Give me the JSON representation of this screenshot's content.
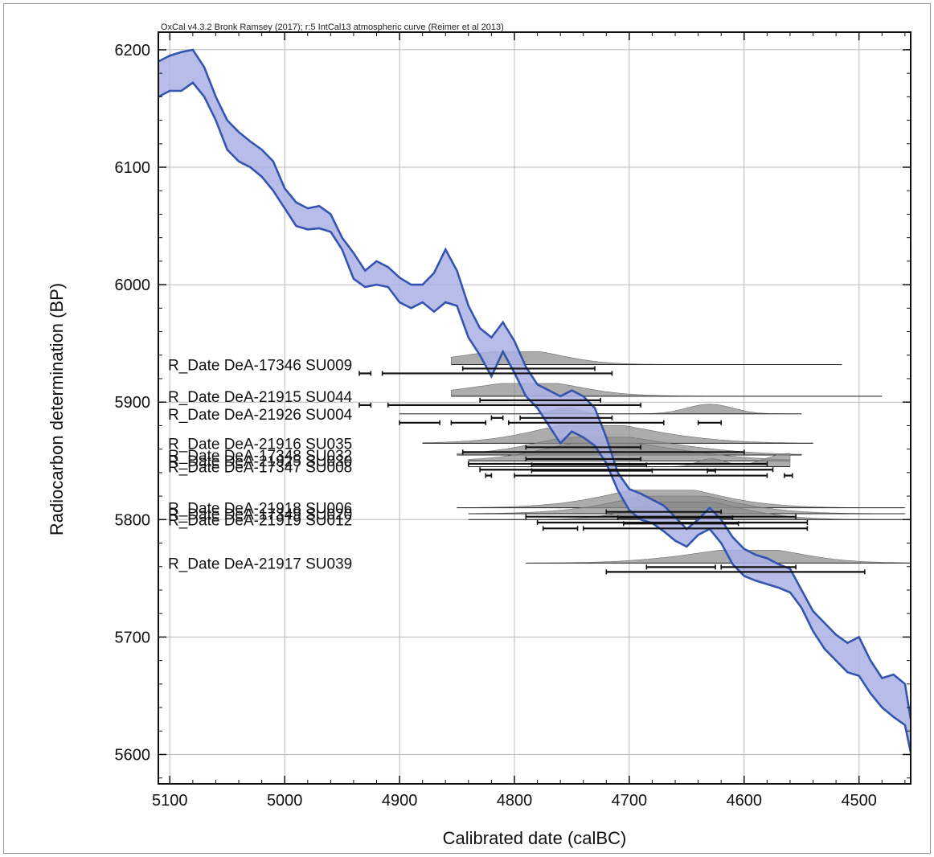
{
  "chart_data": {
    "type": "area",
    "title": "OxCal v4.3.2 Bronk Ramsey (2017); r:5 IntCal13 atmospheric curve (Reimer et al 2013)",
    "xlabel": "Calibrated date (calBC)",
    "ylabel": "Radiocarbon determination (BP)",
    "xlim": [
      5110,
      4455
    ],
    "ylim": [
      5575,
      6215
    ],
    "x_ticks": [
      5100,
      5000,
      4900,
      4800,
      4700,
      4600,
      4500
    ],
    "y_ticks": [
      5600,
      5700,
      5800,
      5900,
      6000,
      6100,
      6200
    ],
    "grid": true,
    "calibration_curve": {
      "name": "IntCal13 atmospheric curve",
      "color": "#3355b0",
      "fill": "#aab2e4",
      "x": [
        5110,
        5100,
        5090,
        5080,
        5070,
        5060,
        5050,
        5040,
        5030,
        5020,
        5010,
        5000,
        4990,
        4980,
        4970,
        4960,
        4950,
        4940,
        4930,
        4920,
        4910,
        4900,
        4890,
        4880,
        4870,
        4860,
        4850,
        4840,
        4830,
        4820,
        4810,
        4800,
        4790,
        4780,
        4770,
        4760,
        4750,
        4740,
        4730,
        4720,
        4710,
        4700,
        4690,
        4680,
        4670,
        4660,
        4650,
        4640,
        4630,
        4620,
        4610,
        4600,
        4590,
        4580,
        4570,
        4560,
        4550,
        4540,
        4530,
        4520,
        4510,
        4500,
        4490,
        4480,
        4470,
        4460,
        4455
      ],
      "upper": [
        6190,
        6195,
        6198,
        6200,
        6185,
        6160,
        6140,
        6130,
        6122,
        6115,
        6105,
        6082,
        6070,
        6065,
        6067,
        6060,
        6040,
        6027,
        6012,
        6020,
        6015,
        6006,
        6000,
        6000,
        6010,
        6030,
        6012,
        5982,
        5963,
        5955,
        5968,
        5952,
        5930,
        5915,
        5910,
        5905,
        5910,
        5905,
        5895,
        5870,
        5840,
        5826,
        5822,
        5817,
        5812,
        5802,
        5792,
        5800,
        5810,
        5800,
        5785,
        5775,
        5770,
        5767,
        5762,
        5758,
        5740,
        5722,
        5712,
        5702,
        5695,
        5700,
        5680,
        5665,
        5668,
        5660,
        5630
      ],
      "lower": [
        6160,
        6165,
        6165,
        6172,
        6160,
        6140,
        6115,
        6105,
        6100,
        6092,
        6080,
        6065,
        6050,
        6047,
        6048,
        6045,
        6030,
        6005,
        5998,
        6000,
        5998,
        5985,
        5980,
        5985,
        5977,
        5985,
        5982,
        5955,
        5940,
        5922,
        5943,
        5925,
        5905,
        5895,
        5880,
        5865,
        5875,
        5870,
        5863,
        5848,
        5825,
        5808,
        5800,
        5797,
        5790,
        5782,
        5777,
        5787,
        5792,
        5780,
        5762,
        5752,
        5748,
        5745,
        5742,
        5738,
        5725,
        5705,
        5690,
        5680,
        5670,
        5667,
        5652,
        5640,
        5632,
        5625,
        5602
      ]
    },
    "series": [
      {
        "name": "R_Date DeA-17346 SU009",
        "y": 5932,
        "density_color": "#8c8c8c",
        "density": [
          [
            4830,
            4940,
            4760,
            4860
          ],
          [
            4770,
            4720,
            4690,
            4850,
            4700,
            4980
          ]
        ],
        "range_extent": [
          4855,
          4515
        ],
        "ranges": [
          [
            4935,
            4925
          ],
          [
            4915,
            4715
          ]
        ],
        "ranges2": [
          [
            4845,
            4730
          ]
        ]
      },
      {
        "name": "R_Date DeA-21915 SU044",
        "y": 5905,
        "density_color": "#8c8c8c",
        "range_extent": [
          4855,
          4480
        ],
        "ranges": [
          [
            4935,
            4925
          ],
          [
            4910,
            4690
          ]
        ],
        "ranges2": [
          [
            4830,
            4725
          ]
        ]
      },
      {
        "name": "R_Date DeA-21926 SU004",
        "y": 5890,
        "density_color": "#8c8c8c",
        "range_extent": [
          4900,
          4550
        ],
        "ranges": [
          [
            4900,
            4865
          ],
          [
            4855,
            4825
          ],
          [
            4805,
            4670
          ],
          [
            4640,
            4620
          ]
        ],
        "ranges2": [
          [
            4820,
            4810
          ],
          [
            4795,
            4715
          ]
        ]
      },
      {
        "name": "R_Date DeA-21916 SU035",
        "y": 5865,
        "density_color": "#8c8c8c",
        "range_extent": [
          4880,
          4540
        ],
        "ranges": [
          [
            4845,
            4600
          ]
        ],
        "ranges2": [
          [
            4790,
            4690
          ]
        ]
      },
      {
        "name": "R_Date DeA-17348 SU032",
        "y": 5855,
        "density_color": "#8c8c8c",
        "range_extent": [
          4850,
          4550
        ],
        "ranges": [
          [
            4840,
            4580
          ]
        ],
        "ranges2": [
          [
            4790,
            4690
          ]
        ]
      },
      {
        "name": "R_Date DeA-21925 SU030",
        "y": 5850,
        "density_color": "#8c8c8c",
        "range_extent": [
          4840,
          4560
        ],
        "ranges": [
          [
            4830,
            4575
          ]
        ],
        "ranges2": [
          [
            4785,
            4685
          ]
        ]
      },
      {
        "name": "R_Date DeA-17347 SU008",
        "y": 5845,
        "density_color": "#8c8c8c",
        "range_extent": [
          4840,
          4560
        ],
        "ranges": [
          [
            4825,
            4820
          ],
          [
            4800,
            4580
          ],
          [
            4565,
            4558
          ]
        ],
        "ranges2": [
          [
            4785,
            4680
          ],
          [
            4632,
            4625
          ]
        ]
      },
      {
        "name": "R_Date DeA-21918 SU006",
        "y": 5810,
        "density_color": "#8c8c8c",
        "range_extent": [
          4850,
          4460
        ],
        "ranges": [
          [
            4790,
            4555
          ]
        ],
        "ranges2": [
          [
            4720,
            4620
          ]
        ]
      },
      {
        "name": "R_Date DeA-17349 SU020",
        "y": 5805,
        "density_color": "#8c8c8c",
        "range_extent": [
          4840,
          4460
        ],
        "ranges": [
          [
            4780,
            4545
          ]
        ],
        "ranges2": [
          [
            4710,
            4610
          ]
        ]
      },
      {
        "name": "R_Date DeA-21919 SU012",
        "y": 5800,
        "density_color": "#8c8c8c",
        "range_extent": [
          4840,
          4460
        ],
        "ranges": [
          [
            4775,
            4745
          ],
          [
            4740,
            4545
          ]
        ],
        "ranges2": [
          [
            4705,
            4605
          ]
        ]
      },
      {
        "name": "R_Date DeA-21917 SU039",
        "y": 5763,
        "density_color": "#8c8c8c",
        "range_extent": [
          4790,
          4455
        ],
        "ranges": [
          [
            4720,
            4495
          ]
        ],
        "ranges2": [
          [
            4685,
            4625
          ],
          [
            4620,
            4555
          ]
        ]
      }
    ]
  }
}
